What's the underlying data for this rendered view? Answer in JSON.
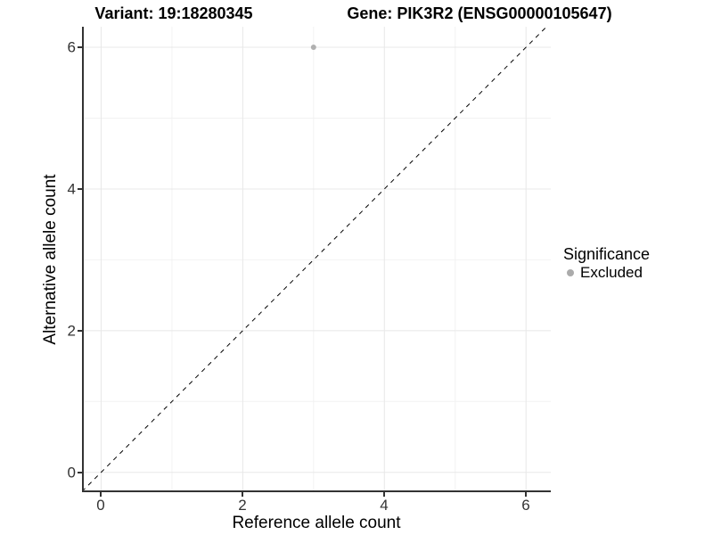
{
  "chart_data": {
    "type": "scatter",
    "titles": {
      "left": "Variant: 19:18280345",
      "right": "Gene: PIK3R2 (ENSG00000105647)"
    },
    "xlabel": "Reference allele count",
    "ylabel": "Alternative allele count",
    "xlim": [
      -0.27,
      6.35
    ],
    "ylim": [
      -0.28,
      6.29
    ],
    "x_ticks": [
      0,
      2,
      4,
      6
    ],
    "y_ticks": [
      0,
      2,
      4,
      6
    ],
    "x_minor_ticks": [
      1,
      3,
      5
    ],
    "y_minor_ticks": [
      1,
      3,
      5
    ],
    "grid": true,
    "points": [
      {
        "x": 3,
        "y": 6,
        "series": "Excluded"
      }
    ],
    "reference_line": {
      "kind": "identity",
      "slope": 1,
      "intercept": 0,
      "style": "dashed",
      "color": "#000000"
    },
    "legend": {
      "title": "Significance",
      "position": "right",
      "entries": [
        {
          "label": "Excluded",
          "color": "#ABABAB",
          "marker": "circle"
        }
      ]
    },
    "colors": {
      "point": "#B0B0B0",
      "grid_major": "#E8E8E8",
      "grid_minor": "#F2F2F2",
      "axis": "#333333",
      "tick_text": "#333333",
      "background": "#FFFFFF"
    }
  }
}
